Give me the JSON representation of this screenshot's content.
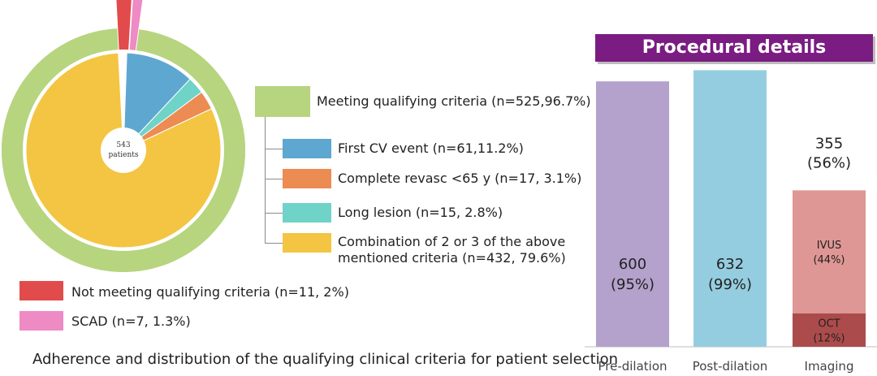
{
  "donut": {
    "center_label_line1": "543",
    "center_label_line2": "patients",
    "outer_color": "#b7d47f",
    "segments": [
      {
        "name": "First CV event",
        "pct": 11.2,
        "color": "#5ea7d1"
      },
      {
        "name": "Long lesion",
        "pct": 2.8,
        "color": "#6fd3c8"
      },
      {
        "name": "Complete revasc <65 y",
        "pct": 3.1,
        "color": "#ec8b52"
      },
      {
        "name": "Combination",
        "pct": 79.6,
        "color": "#f4c542"
      }
    ],
    "exploded": [
      {
        "name": "Not meeting",
        "pct": 2,
        "color": "#e24b4b"
      },
      {
        "name": "SCAD",
        "pct": 1.3,
        "color": "#ee8ac4"
      }
    ]
  },
  "legend": {
    "meeting": {
      "label": "Meeting qualifying criteria (n=525,96.7%)",
      "color": "#b7d47f"
    },
    "first_cv": {
      "label": "First CV event (n=61,11.2%)",
      "color": "#5ea7d1"
    },
    "complete_revasc": {
      "label": "Complete revasc <65 y (n=17, 3.1%)",
      "color": "#ec8b52"
    },
    "long_lesion": {
      "label": "Long lesion (n=15, 2.8%)",
      "color": "#6fd3c8"
    },
    "combination": {
      "label": "Combination of 2 or 3 of the above mentioned criteria (n=432, 79.6%)",
      "color": "#f4c542"
    },
    "not_meeting": {
      "label": "Not meeting qualifying criteria (n=11, 2%)",
      "color": "#e24b4b"
    },
    "scad": {
      "label": "SCAD (n=7, 1.3%)",
      "color": "#ee8ac4"
    }
  },
  "caption": "Adherence and distribution of the qualifying clinical criteria for patient selection",
  "chart_data": {
    "type": "bar",
    "title": "Procedural details",
    "title_bg": "#7a1c82",
    "categories": [
      "Pre-dilation",
      "Post-dilation",
      "Imaging"
    ],
    "bars": [
      {
        "category": "Pre-dilation",
        "value": 600,
        "pct": 95,
        "label_value": "600",
        "label_pct": "(95%)",
        "color": "#b4a1cc"
      },
      {
        "category": "Post-dilation",
        "value": 632,
        "pct": 99,
        "label_value": "632",
        "label_pct": "(99%)",
        "color": "#95cde0"
      },
      {
        "category": "Imaging",
        "value": 355,
        "pct": 56,
        "label_value": "355",
        "label_pct": "(56%)",
        "stacked": [
          {
            "name": "OCT",
            "pct_label": "(12%)",
            "pct": 12,
            "color": "#ac4b4b"
          },
          {
            "name": "IVUS",
            "pct_label": "(44%)",
            "pct": 44,
            "color": "#df9795"
          }
        ]
      }
    ],
    "ylim": [
      0,
      100
    ],
    "axis_color": "#bfbfbf"
  }
}
